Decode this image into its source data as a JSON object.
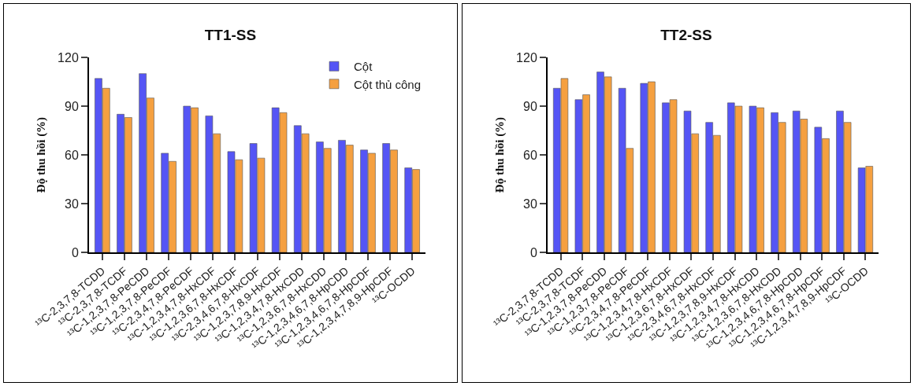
{
  "chart_data": [
    {
      "type": "bar",
      "title": "TT1-SS",
      "ylabel": "Độ thu hồi (%)",
      "categories": [
        "¹³C-2,3,7,8-TCDD",
        "¹³C-2,3,7,8-TCDF",
        "¹³C-1,2,3,7,8-PeCDD",
        "¹³C-1,2,3,7,8-PeCDF",
        "¹³C-2,3,4,7,8-PeCDF",
        "¹³C-1,2,3,4,7,8-HxCDF",
        "¹³C-1,2,3,6,7,8-HxCDF",
        "¹³C-2,3,4,6,7,8-HxCDF",
        "¹³C-1,2,3,7,8,9-HxCDF",
        "¹³C-1,2,3,4,7,8-HxCDD",
        "¹³C-1,2,3,6,7,8-HxCDD",
        "¹³C-1,2,3,4,6,7,8-HpCDD",
        "¹³C-1,2,3,4,6,7,8-HpCDF",
        "¹³C-1,2,3,4,7,8,9-HpCDF",
        "¹³C-OCDD"
      ],
      "series": [
        {
          "name": "Cột",
          "color": "#5555f5",
          "values": [
            107,
            85,
            110,
            61,
            90,
            84,
            62,
            67,
            89,
            78,
            68,
            69,
            63,
            67,
            52
          ]
        },
        {
          "name": "Cột thủ công",
          "color": "#f5a040",
          "values": [
            101,
            83,
            95,
            56,
            89,
            73,
            57,
            58,
            86,
            73,
            64,
            66,
            61,
            63,
            51
          ]
        }
      ],
      "ylim": [
        0,
        120
      ],
      "yticks": [
        0,
        30,
        60,
        90,
        120
      ],
      "grid": false,
      "legend": "top right"
    },
    {
      "type": "bar",
      "title": "TT2-SS",
      "ylabel": "Độ thu hồi (%)",
      "categories": [
        "¹³C-2,3,7,8-TCDD",
        "¹³C-2,3,7,8-TCDF",
        "¹³C-1,2,3,7,8-PeCDD",
        "¹³C-1,2,3,7,8-PeCDF",
        "¹³C-2,3,4,7,8-PeCDF",
        "¹³C-1,2,3,4,7,8-HxCDF",
        "¹³C-1,2,3,6,7,8-HxCDF",
        "¹³C-2,3,4,6,7,8-HxCDF",
        "¹³C-1,2,3,7,8,9-HxCDF",
        "¹³C-1,2,3,4,7,8-HxCDD",
        "¹³C-1,2,3,6,7,8-HxCDD",
        "¹³C-1,2,3,4,6,7,8-HpCDD",
        "¹³C-1,2,3,4,6,7,8-HpCDF",
        "¹³C-1,2,3,4,7,8,9-HpCDF",
        "¹³C-OCDD"
      ],
      "series": [
        {
          "color": "#5555f5",
          "values": [
            101,
            94,
            111,
            101,
            104,
            92,
            87,
            80,
            92,
            90,
            86,
            87,
            77,
            87,
            52
          ]
        },
        {
          "color": "#f5a040",
          "values": [
            107,
            97,
            108,
            64,
            105,
            94,
            73,
            72,
            90,
            89,
            80,
            82,
            70,
            80,
            53
          ]
        }
      ],
      "ylim": [
        0,
        120
      ],
      "yticks": [
        0,
        30,
        60,
        90,
        120
      ],
      "grid": false,
      "legend": false
    }
  ]
}
